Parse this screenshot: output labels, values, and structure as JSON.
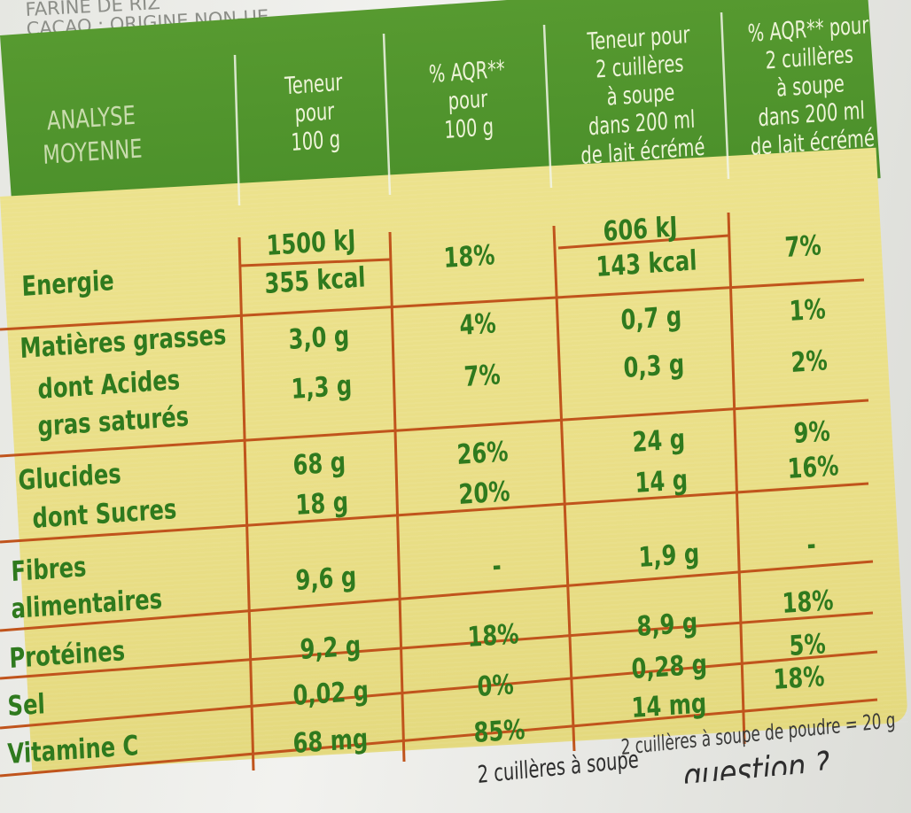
{
  "top": {
    "line1": "FARINE DE RIZ",
    "line2": "CACAO : ORIGINE NON-UE."
  },
  "header": {
    "analyse": [
      "ANALYSE",
      "MOYENNE"
    ],
    "col1": [
      "Teneur",
      "pour",
      "100 g"
    ],
    "col2": [
      "% AQR**",
      "pour",
      "100 g"
    ],
    "col3": [
      "Teneur pour",
      "2 cuillères",
      "à soupe",
      "dans 200 ml",
      "de lait écrémé"
    ],
    "col4": [
      "% AQR** pour",
      "2 cuillères",
      "à soupe",
      "dans 200 ml",
      "de lait écrémé"
    ]
  },
  "rows": {
    "energie": {
      "label": "Energie",
      "v1a": "1500 kJ",
      "v1b": "355 kcal",
      "v2": "18%",
      "v3a": "606 kJ",
      "v3b": "143 kcal",
      "v4": "7%"
    },
    "mg": {
      "label": "Matières grasses",
      "v1": "3,0 g",
      "v2": "4%",
      "v3": "0,7 g",
      "v4": "1%"
    },
    "ags": {
      "label1": "dont Acides",
      "label2": "gras saturés",
      "v1": "1,3 g",
      "v2": "7%",
      "v3": "0,3 g",
      "v4": "2%"
    },
    "glucides": {
      "label": "Glucides",
      "v1": "68 g",
      "v2": "26%",
      "v3": "24 g",
      "v4": "9%"
    },
    "sucres": {
      "label": "dont Sucres",
      "v1": "18 g",
      "v2": "20%",
      "v3": "14 g",
      "v4": "16%"
    },
    "fibres": {
      "label1": "Fibres",
      "label2": "alimentaires",
      "v1": "9,6 g",
      "v2": "-",
      "v3": "1,9 g",
      "v4": "-"
    },
    "proteines": {
      "label": "Protéines",
      "v1": "9,2 g",
      "v2": "18%",
      "v3": "8,9 g",
      "v4": "18%"
    },
    "sel": {
      "label": "Sel",
      "v1": "0,02 g",
      "v2": "0%",
      "v3": "0,28 g",
      "v4": "5%"
    },
    "vitc": {
      "label": "Vitamine C",
      "v1": "68 mg",
      "v2": "85%",
      "v3": "14 mg",
      "v4": "18%"
    }
  },
  "notes": {
    "poudre": "2 cuillères à soupe de poudre = 20 g",
    "bottom": "2 cuillères à soupe",
    "question": "question ?"
  },
  "colors": {
    "green_header": "#4f942c",
    "yellow_panel": "#ebe089",
    "grid_lines": "#c0541c",
    "text_green": "#2f7a1e"
  }
}
